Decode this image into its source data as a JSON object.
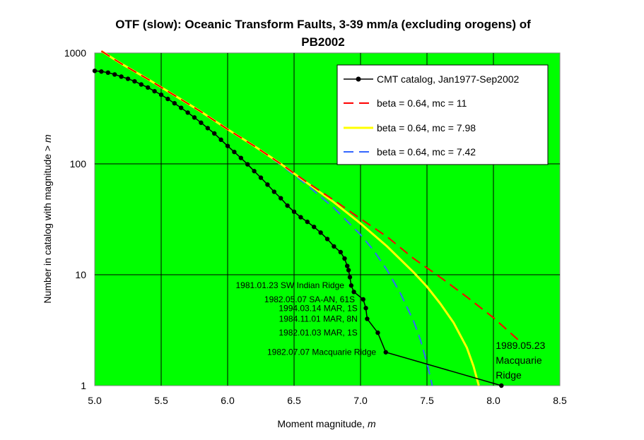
{
  "chart_data": {
    "type": "line",
    "title_line1": "OTF (slow): Oceanic Transform Faults, 3-39 mm/a (excluding orogens) of",
    "title_line2": "PB2002",
    "xlabel": "Moment magnitude, ",
    "xlabel_var": "m",
    "ylabel": "Number in catalog with magnitude > ",
    "ylabel_var": "m",
    "xlim": [
      5.0,
      8.5
    ],
    "ylim": [
      1,
      1000
    ],
    "yscale": "log",
    "grid": true,
    "plot_background": "#00ff00",
    "x_ticks": [
      "5.0",
      "5.5",
      "6.0",
      "6.5",
      "7.0",
      "7.5",
      "8.0",
      "8.5"
    ],
    "y_ticks": [
      {
        "value": 1,
        "label": "1"
      },
      {
        "value": 10,
        "label": "10"
      },
      {
        "value": 100,
        "label": "100"
      },
      {
        "value": 1000,
        "label": "1000"
      }
    ],
    "legend_position": "top-right",
    "series": [
      {
        "name": "CMT catalog, Jan1977-Sep2002",
        "color": "#000000",
        "style": "solid-markers",
        "points": [
          [
            5.0,
            690
          ],
          [
            5.05,
            680
          ],
          [
            5.1,
            665
          ],
          [
            5.15,
            640
          ],
          [
            5.2,
            612
          ],
          [
            5.25,
            585
          ],
          [
            5.3,
            555
          ],
          [
            5.35,
            520
          ],
          [
            5.4,
            488
          ],
          [
            5.45,
            452
          ],
          [
            5.5,
            420
          ],
          [
            5.55,
            385
          ],
          [
            5.6,
            352
          ],
          [
            5.65,
            320
          ],
          [
            5.7,
            290
          ],
          [
            5.75,
            262
          ],
          [
            5.8,
            235
          ],
          [
            5.85,
            210
          ],
          [
            5.9,
            188
          ],
          [
            5.95,
            165
          ],
          [
            6.0,
            145
          ],
          [
            6.05,
            128
          ],
          [
            6.1,
            113
          ],
          [
            6.15,
            99
          ],
          [
            6.2,
            86
          ],
          [
            6.25,
            75
          ],
          [
            6.3,
            65
          ],
          [
            6.35,
            56
          ],
          [
            6.4,
            49
          ],
          [
            6.45,
            42
          ],
          [
            6.5,
            37
          ],
          [
            6.55,
            33
          ],
          [
            6.6,
            30
          ],
          [
            6.65,
            27
          ],
          [
            6.7,
            24
          ],
          [
            6.75,
            21
          ],
          [
            6.8,
            18
          ],
          [
            6.85,
            16
          ],
          [
            6.88,
            14
          ],
          [
            6.9,
            12
          ],
          [
            6.91,
            11
          ],
          [
            6.92,
            9.5
          ],
          [
            6.93,
            8
          ],
          [
            6.95,
            7
          ],
          [
            7.02,
            6
          ],
          [
            7.04,
            5
          ],
          [
            7.05,
            4
          ],
          [
            7.13,
            3
          ],
          [
            7.19,
            2
          ],
          [
            8.06,
            1
          ]
        ]
      },
      {
        "name": "beta = 0.64, mc = 11",
        "color": "#ff0000",
        "style": "dashed",
        "points": [
          [
            5.05,
            1040
          ],
          [
            5.2,
            800
          ],
          [
            5.4,
            580
          ],
          [
            5.6,
            415
          ],
          [
            5.8,
            295
          ],
          [
            6.0,
            205
          ],
          [
            6.2,
            145
          ],
          [
            6.4,
            100
          ],
          [
            6.6,
            68
          ],
          [
            6.8,
            47
          ],
          [
            7.0,
            32
          ],
          [
            7.2,
            22
          ],
          [
            7.4,
            14
          ],
          [
            7.6,
            9.5
          ],
          [
            7.8,
            6.3
          ],
          [
            8.0,
            4.1
          ],
          [
            8.1,
            3.2
          ],
          [
            8.2,
            2.5
          ]
        ]
      },
      {
        "name": "beta = 0.64, mc = 7.98",
        "color": "#ffff00",
        "style": "solid",
        "points": [
          [
            5.05,
            1040
          ],
          [
            5.2,
            800
          ],
          [
            5.4,
            580
          ],
          [
            5.6,
            415
          ],
          [
            5.8,
            295
          ],
          [
            6.0,
            205
          ],
          [
            6.2,
            145
          ],
          [
            6.4,
            100
          ],
          [
            6.6,
            67
          ],
          [
            6.8,
            45
          ],
          [
            7.0,
            29
          ],
          [
            7.2,
            18
          ],
          [
            7.4,
            10.5
          ],
          [
            7.5,
            7.8
          ],
          [
            7.6,
            5.5
          ],
          [
            7.7,
            3.7
          ],
          [
            7.8,
            2.2
          ],
          [
            7.85,
            1.5
          ],
          [
            7.89,
            1.0
          ]
        ]
      },
      {
        "name": "beta = 0.64, mc = 7.42",
        "color": "#3366ff",
        "style": "dashed",
        "points": [
          [
            5.05,
            1040
          ],
          [
            5.2,
            800
          ],
          [
            5.4,
            580
          ],
          [
            5.6,
            415
          ],
          [
            5.8,
            295
          ],
          [
            6.0,
            205
          ],
          [
            6.2,
            145
          ],
          [
            6.4,
            98
          ],
          [
            6.6,
            64
          ],
          [
            6.8,
            40
          ],
          [
            7.0,
            23
          ],
          [
            7.1,
            16.5
          ],
          [
            7.2,
            11
          ],
          [
            7.3,
            6.8
          ],
          [
            7.4,
            3.8
          ],
          [
            7.45,
            2.6
          ],
          [
            7.5,
            1.6
          ],
          [
            7.54,
            1.0
          ]
        ]
      }
    ],
    "annotations": [
      {
        "text": "1981.01.23 SW Indian Ridge",
        "x": 6.92,
        "y": 8
      },
      {
        "text": "1982.05.07 SA-AN, 61S",
        "x": 7.0,
        "y": 6
      },
      {
        "text": "1994.03.14 MAR, 1S",
        "x": 7.02,
        "y": 5
      },
      {
        "text": "1984.11.01 MAR, 8N",
        "x": 7.02,
        "y": 4
      },
      {
        "text": "1982.01.03 MAR, 1S",
        "x": 7.02,
        "y": 3
      },
      {
        "text": "1982.07.07 Macquarie Ridge",
        "x": 7.16,
        "y": 2
      },
      {
        "text_lines": [
          "1989.05.23",
          "Macquarie",
          "Ridge"
        ],
        "x": 8.06,
        "y": 1
      }
    ]
  }
}
